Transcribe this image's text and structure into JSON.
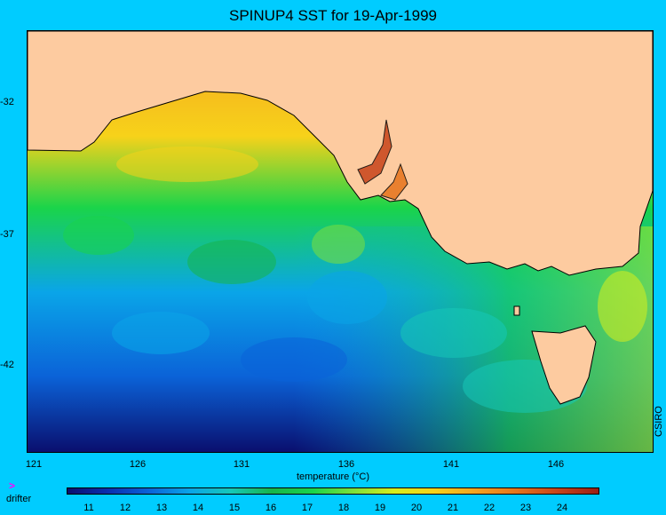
{
  "title": "SPINUP4 SST for 19-Apr-1999",
  "credit": "CSIRO",
  "colorbar_label": "temperature (°C)",
  "legend": {
    "marker": ">",
    "label": "drifter",
    "marker_color": "#ff00ff"
  },
  "colors": {
    "background": "#00ccff",
    "land": "#fdcba0",
    "colorbar": [
      "#0a0f6e",
      "#0a2fb0",
      "#0b63d8",
      "#0aa5e8",
      "#16c8b8",
      "#17b54a",
      "#1ad44a",
      "#7ee03a",
      "#d8ee1c",
      "#f7d21a",
      "#f3a221",
      "#e6741c",
      "#c7431a",
      "#9a1f15"
    ]
  },
  "map": {
    "latitude_ticks": [
      "-32",
      "-37",
      "-42"
    ],
    "longitude_ticks": [
      "121",
      "126",
      "131",
      "136",
      "141",
      "146"
    ]
  },
  "colorbar_ticks": [
    "11",
    "12",
    "13",
    "14",
    "15",
    "16",
    "17",
    "18",
    "19",
    "20",
    "21",
    "22",
    "23",
    "24"
  ]
}
